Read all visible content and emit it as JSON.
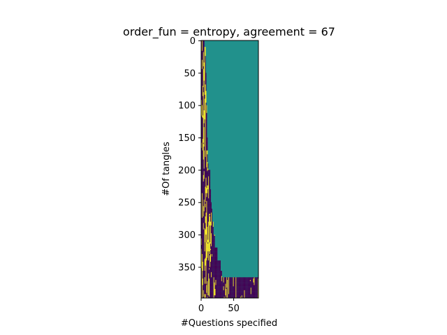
{
  "chart_data": {
    "type": "heatmap",
    "title": "order_fun = entropy, agreement = 67",
    "xlabel": "#Questions specified",
    "ylabel": "#Of tangles",
    "x_range": [
      0,
      88
    ],
    "y_range": [
      0,
      398
    ],
    "y_inverted": true,
    "x_ticks": [
      0,
      50
    ],
    "y_ticks": [
      0,
      50,
      100,
      150,
      200,
      250,
      300,
      350
    ],
    "grid": false,
    "legend": "none",
    "colormap": "viridis",
    "values_shown": [
      -1,
      0,
      1
    ],
    "colors": {
      "-1": "#440154",
      "0": "#21918c",
      "1": "#fde725"
    },
    "specified_questions_by_row": {
      "rows": [
        0,
        10,
        50,
        100,
        150,
        190,
        200,
        230,
        250,
        260,
        280,
        300,
        320,
        340,
        355,
        365,
        370,
        380,
        398
      ],
      "questions": [
        5,
        7,
        8,
        9,
        10,
        11,
        14,
        15,
        16,
        17,
        19,
        21,
        25,
        30,
        32,
        88,
        88,
        88,
        88
      ]
    },
    "note_values": "cells beyond the specified questions have value 0 (teal); specified cells are -1 or 1"
  }
}
